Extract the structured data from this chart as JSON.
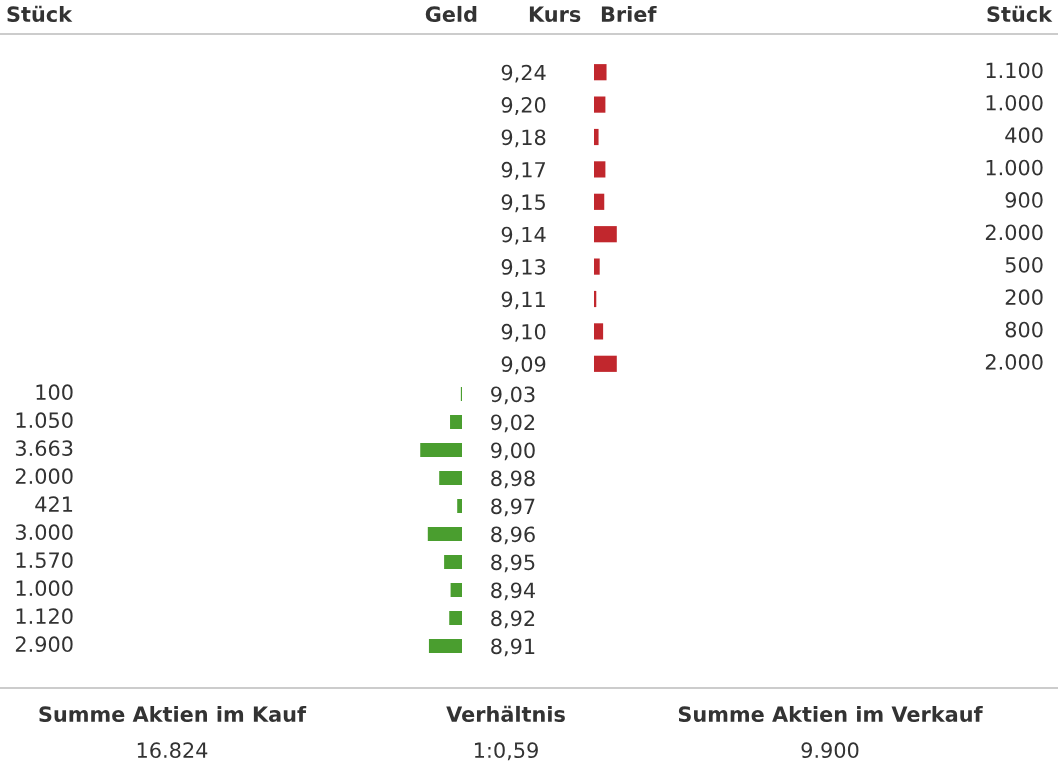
{
  "chart_data": [
    {
      "type": "bar",
      "orientation": "horizontal",
      "categories": [
        "9,24",
        "9,20",
        "9,18",
        "9,17",
        "9,15",
        "9,14",
        "9,13",
        "9,11",
        "9,10",
        "9,09"
      ],
      "values": [
        1100,
        1000,
        400,
        1000,
        900,
        2000,
        500,
        200,
        800,
        2000
      ],
      "value_labels": [
        "1.100",
        "1.000",
        "400",
        "1.000",
        "900",
        "2.000",
        "500",
        "200",
        "800",
        "2.000"
      ],
      "color": "#c1272d",
      "annotations": [
        "Stück",
        "Geld",
        "Kurs",
        "Brief",
        "Stück"
      ]
    },
    {
      "type": "bar",
      "orientation": "horizontal",
      "categories": [
        "9,03",
        "9,02",
        "9,00",
        "8,98",
        "8,97",
        "8,96",
        "8,95",
        "8,94",
        "8,92",
        "8,91"
      ],
      "values": [
        100,
        1050,
        3663,
        2000,
        421,
        3000,
        1570,
        1000,
        1120,
        2900
      ],
      "value_labels": [
        "100",
        "1.050",
        "3.663",
        "2.000",
        "421",
        "3.000",
        "1.570",
        "1.000",
        "1.120",
        "2.900"
      ],
      "color": "#4a9e2f"
    },
    {
      "type": "other",
      "annotations": [
        "Summe Aktien im Kauf",
        "16.824",
        "Verhältnis",
        "1:0,59",
        "Summe Aktien im Verkauf",
        "9.900"
      ]
    }
  ]
}
